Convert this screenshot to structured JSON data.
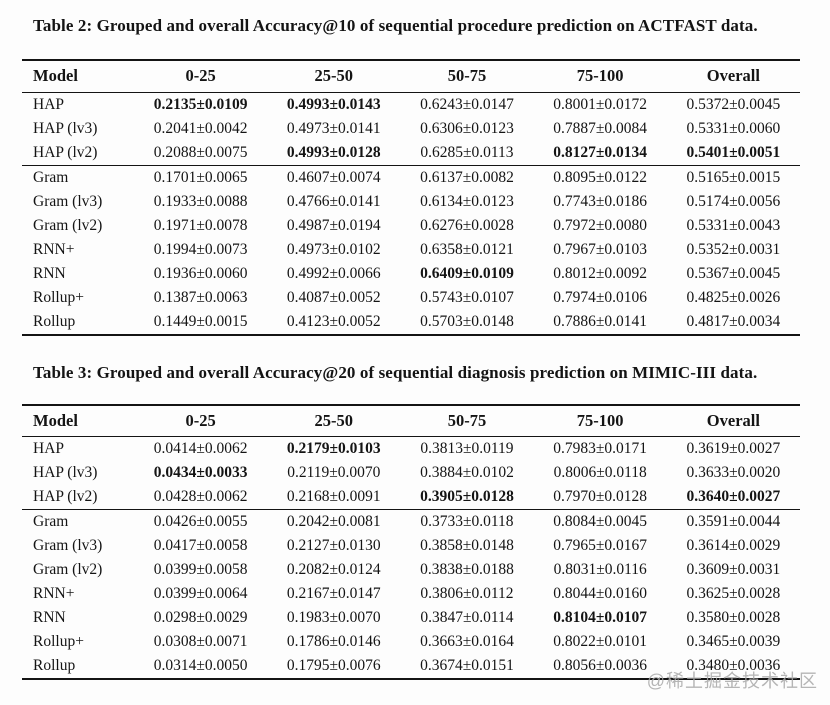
{
  "watermark": "@稀土掘金技术社区",
  "tables": [
    {
      "caption": "Table 2: Grouped and overall Accuracy@10 of sequential procedure prediction on ACTFAST data.",
      "columns": [
        "Model",
        "0-25",
        "25-50",
        "50-75",
        "75-100",
        "Overall"
      ],
      "groups": [
        {
          "rows": [
            {
              "model": "HAP",
              "values": [
                "0.2135±0.0109",
                "0.4993±0.0143",
                "0.6243±0.0147",
                "0.8001±0.0172",
                "0.5372±0.0045"
              ],
              "bold": [
                0,
                1
              ]
            },
            {
              "model": "HAP (lv3)",
              "values": [
                "0.2041±0.0042",
                "0.4973±0.0141",
                "0.6306±0.0123",
                "0.7887±0.0084",
                "0.5331±0.0060"
              ],
              "bold": []
            },
            {
              "model": "HAP (lv2)",
              "values": [
                "0.2088±0.0075",
                "0.4993±0.0128",
                "0.6285±0.0113",
                "0.8127±0.0134",
                "0.5401±0.0051"
              ],
              "bold": [
                1,
                3,
                4
              ]
            }
          ]
        },
        {
          "rows": [
            {
              "model": "Gram",
              "values": [
                "0.1701±0.0065",
                "0.4607±0.0074",
                "0.6137±0.0082",
                "0.8095±0.0122",
                "0.5165±0.0015"
              ],
              "bold": []
            },
            {
              "model": "Gram (lv3)",
              "values": [
                "0.1933±0.0088",
                "0.4766±0.0141",
                "0.6134±0.0123",
                "0.7743±0.0186",
                "0.5174±0.0056"
              ],
              "bold": []
            },
            {
              "model": "Gram (lv2)",
              "values": [
                "0.1971±0.0078",
                "0.4987±0.0194",
                "0.6276±0.0028",
                "0.7972±0.0080",
                "0.5331±0.0043"
              ],
              "bold": []
            },
            {
              "model": "RNN+",
              "values": [
                "0.1994±0.0073",
                "0.4973±0.0102",
                "0.6358±0.0121",
                "0.7967±0.0103",
                "0.5352±0.0031"
              ],
              "bold": []
            },
            {
              "model": "RNN",
              "values": [
                "0.1936±0.0060",
                "0.4992±0.0066",
                "0.6409±0.0109",
                "0.8012±0.0092",
                "0.5367±0.0045"
              ],
              "bold": [
                2
              ]
            },
            {
              "model": "Rollup+",
              "values": [
                "0.1387±0.0063",
                "0.4087±0.0052",
                "0.5743±0.0107",
                "0.7974±0.0106",
                "0.4825±0.0026"
              ],
              "bold": []
            },
            {
              "model": "Rollup",
              "values": [
                "0.1449±0.0015",
                "0.4123±0.0052",
                "0.5703±0.0148",
                "0.7886±0.0141",
                "0.4817±0.0034"
              ],
              "bold": []
            }
          ]
        }
      ]
    },
    {
      "caption": "Table 3: Grouped and overall Accuracy@20 of sequential diagnosis prediction on MIMIC-III data.",
      "columns": [
        "Model",
        "0-25",
        "25-50",
        "50-75",
        "75-100",
        "Overall"
      ],
      "groups": [
        {
          "rows": [
            {
              "model": "HAP",
              "values": [
                "0.0414±0.0062",
                "0.2179±0.0103",
                "0.3813±0.0119",
                "0.7983±0.0171",
                "0.3619±0.0027"
              ],
              "bold": [
                1
              ]
            },
            {
              "model": "HAP (lv3)",
              "values": [
                "0.0434±0.0033",
                "0.2119±0.0070",
                "0.3884±0.0102",
                "0.8006±0.0118",
                "0.3633±0.0020"
              ],
              "bold": [
                0
              ]
            },
            {
              "model": "HAP (lv2)",
              "values": [
                "0.0428±0.0062",
                "0.2168±0.0091",
                "0.3905±0.0128",
                "0.7970±0.0128",
                "0.3640±0.0027"
              ],
              "bold": [
                2,
                4
              ]
            }
          ]
        },
        {
          "rows": [
            {
              "model": "Gram",
              "values": [
                "0.0426±0.0055",
                "0.2042±0.0081",
                "0.3733±0.0118",
                "0.8084±0.0045",
                "0.3591±0.0044"
              ],
              "bold": []
            },
            {
              "model": "Gram (lv3)",
              "values": [
                "0.0417±0.0058",
                "0.2127±0.0130",
                "0.3858±0.0148",
                "0.7965±0.0167",
                "0.3614±0.0029"
              ],
              "bold": []
            },
            {
              "model": "Gram (lv2)",
              "values": [
                "0.0399±0.0058",
                "0.2082±0.0124",
                "0.3838±0.0188",
                "0.8031±0.0116",
                "0.3609±0.0031"
              ],
              "bold": []
            },
            {
              "model": "RNN+",
              "values": [
                "0.0399±0.0064",
                "0.2167±0.0147",
                "0.3806±0.0112",
                "0.8044±0.0160",
                "0.3625±0.0028"
              ],
              "bold": []
            },
            {
              "model": "RNN",
              "values": [
                "0.0298±0.0029",
                "0.1983±0.0070",
                "0.3847±0.0114",
                "0.8104±0.0107",
                "0.3580±0.0028"
              ],
              "bold": [
                3
              ]
            },
            {
              "model": "Rollup+",
              "values": [
                "0.0308±0.0071",
                "0.1786±0.0146",
                "0.3663±0.0164",
                "0.8022±0.0101",
                "0.3465±0.0039"
              ],
              "bold": []
            },
            {
              "model": "Rollup",
              "values": [
                "0.0314±0.0050",
                "0.1795±0.0076",
                "0.3674±0.0151",
                "0.8056±0.0036",
                "0.3480±0.0036"
              ],
              "bold": []
            }
          ]
        }
      ]
    }
  ]
}
